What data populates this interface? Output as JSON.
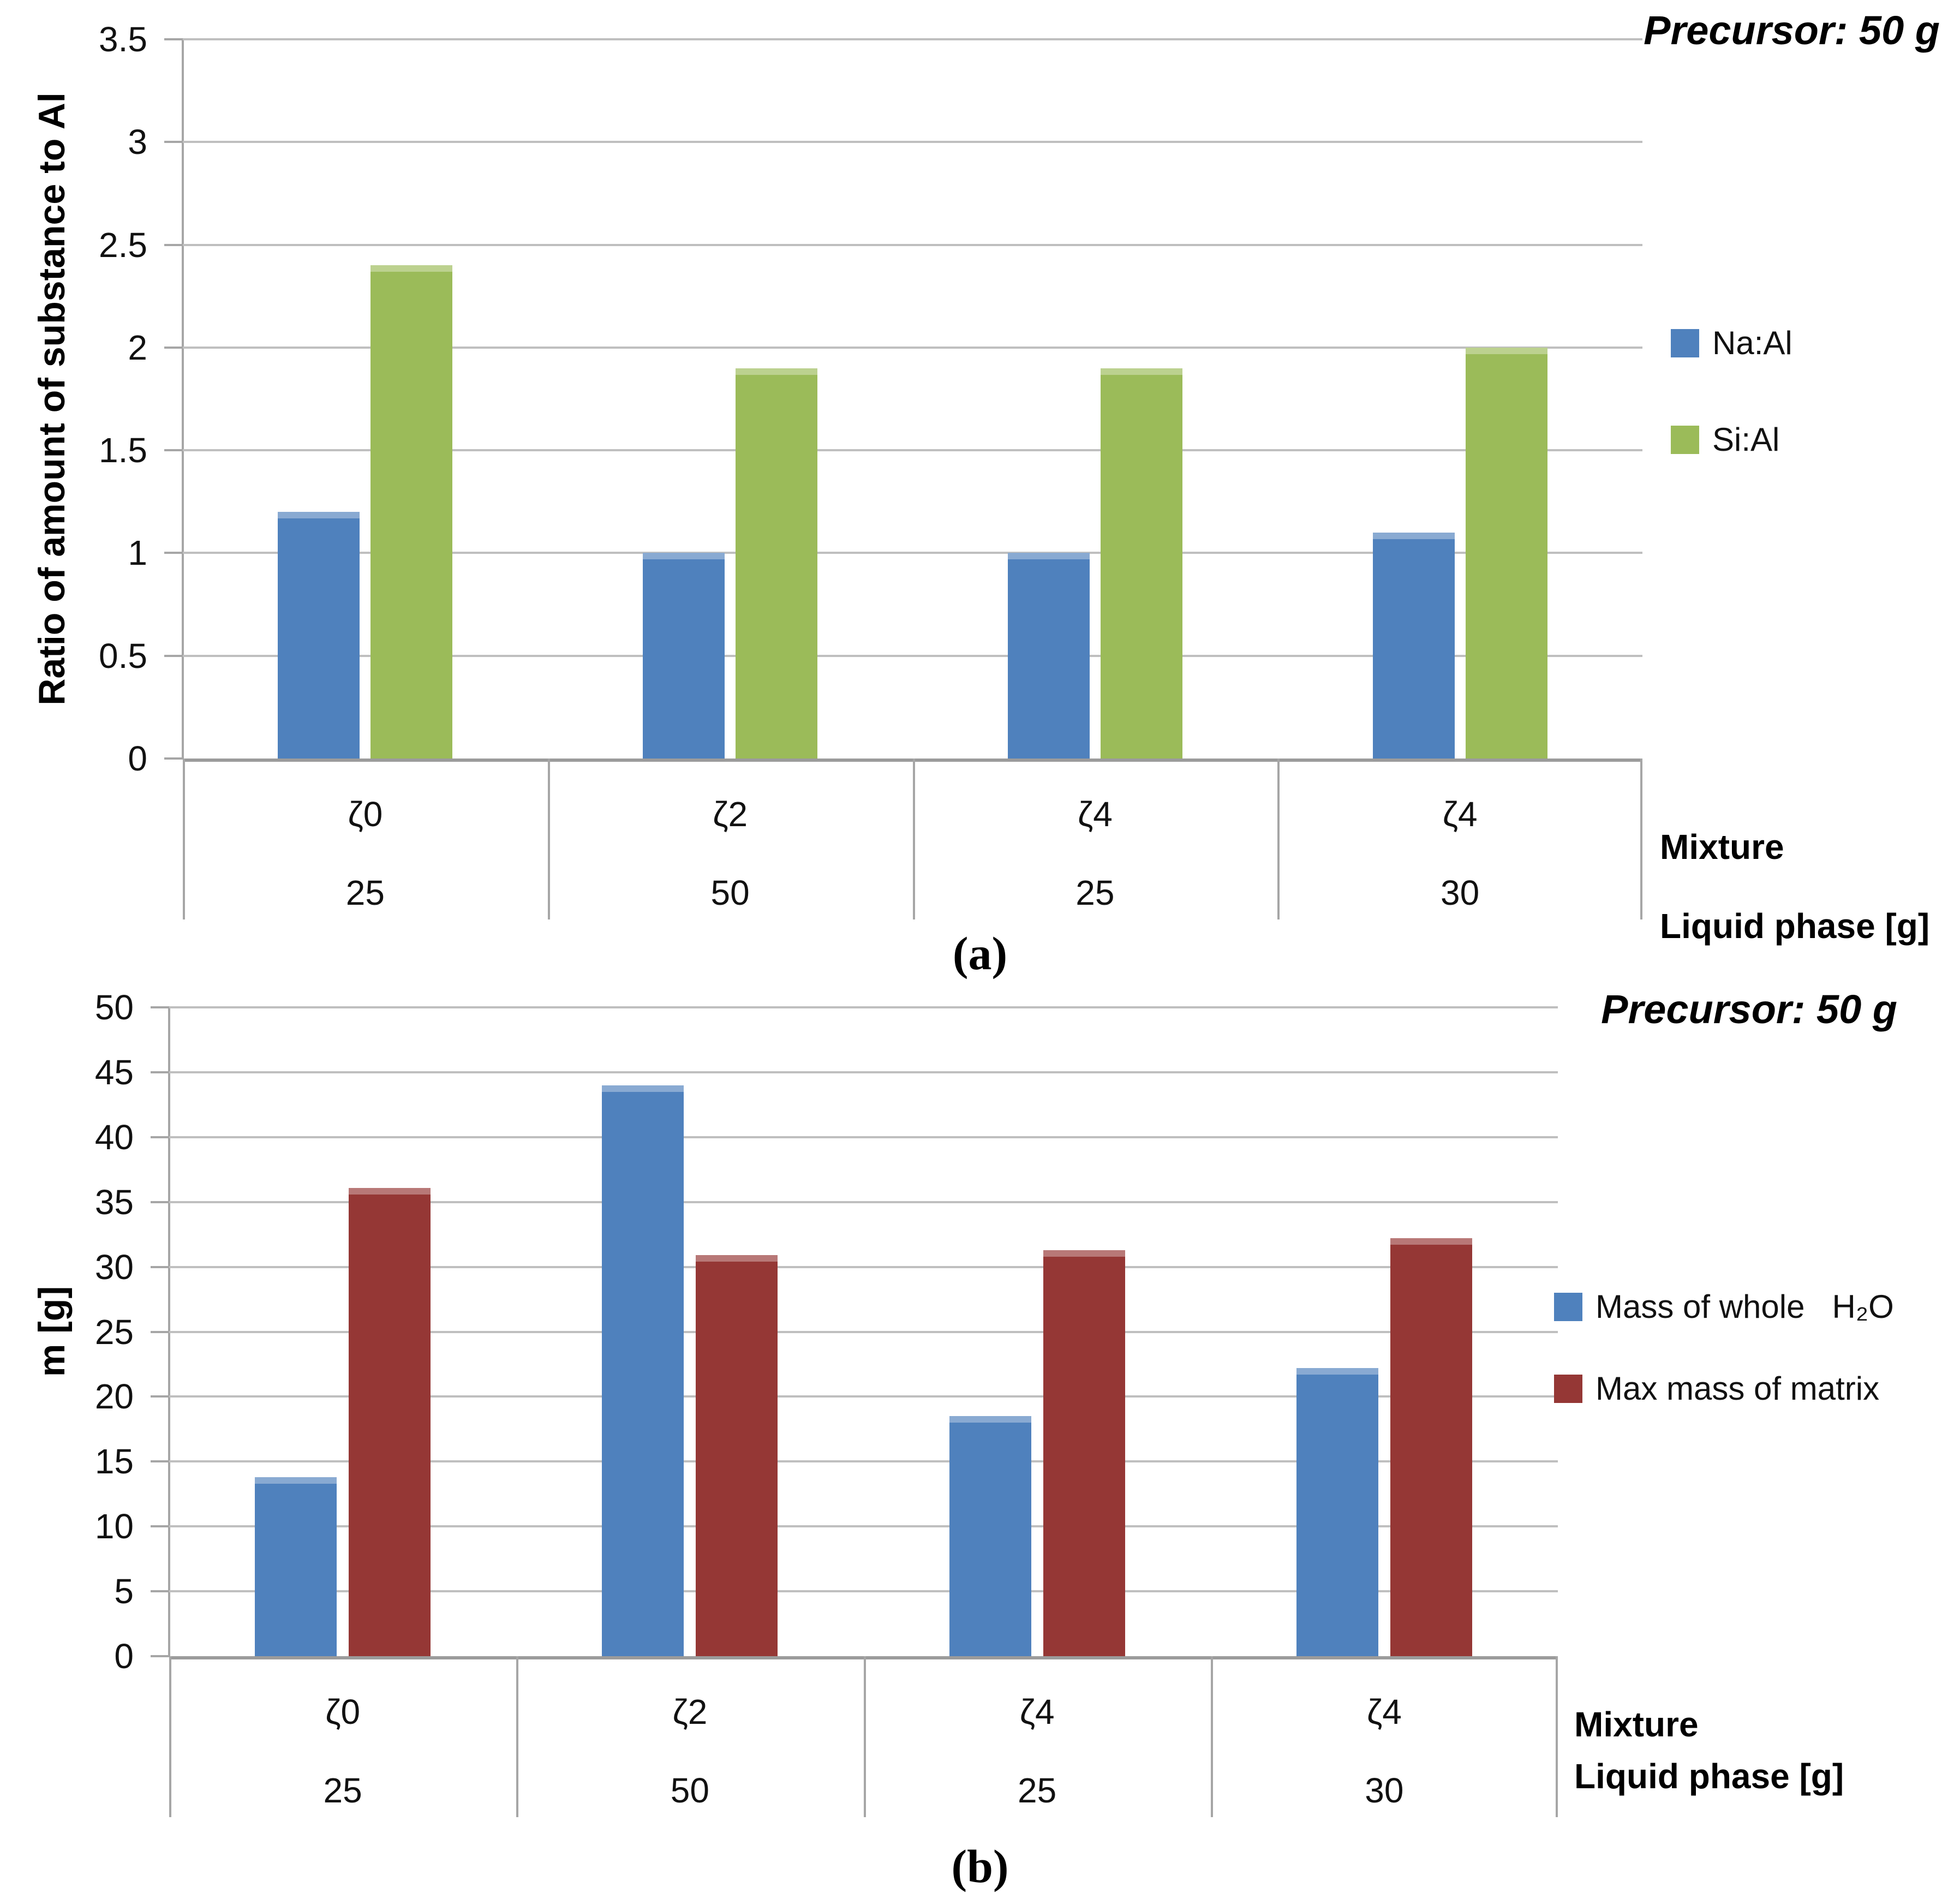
{
  "figure": {
    "captions": [
      "(a)",
      "(b)"
    ],
    "background": "#FFFFFF",
    "colors": {
      "gridline": "#BFBFBF",
      "axis": "#A6A6A6",
      "axis_baseline": "#9B9B9B"
    }
  },
  "chart_data": [
    {
      "id": "a",
      "type": "bar",
      "title": "Precursor: 50 g",
      "ylabel": "Ratio of amount of substance to Al",
      "ylim": [
        0,
        3.5
      ],
      "ytick_step": 0.5,
      "grid": true,
      "legend_position": "right",
      "series": [
        {
          "name": "Na:Al",
          "color": "#4F81BD",
          "values": [
            1.2,
            1.0,
            1.0,
            1.1
          ]
        },
        {
          "name": "Si:Al",
          "color": "#9BBB59",
          "values": [
            2.4,
            1.9,
            1.9,
            2.0
          ]
        }
      ],
      "category_rows": [
        {
          "label": "Mixture",
          "values": [
            "ζ0",
            "ζ2",
            "ζ4",
            "ζ4"
          ]
        },
        {
          "label": "Liquid phase [g]",
          "values": [
            "25",
            "50",
            "25",
            "30"
          ]
        }
      ]
    },
    {
      "id": "b",
      "type": "bar",
      "title": "Precursor: 50 g",
      "ylabel": "m [g]",
      "ylim": [
        0,
        50
      ],
      "ytick_step": 5,
      "grid": true,
      "legend_position": "right",
      "series": [
        {
          "name": "Mass of whole   H₂O",
          "color": "#4F81BD",
          "values": [
            13.8,
            44,
            18.5,
            22.2
          ]
        },
        {
          "name": "Max mass of matrix",
          "color": "#953735",
          "values": [
            36.1,
            30.9,
            31.3,
            32.2
          ]
        }
      ],
      "category_rows": [
        {
          "label": "Mixture",
          "values": [
            "ζ0",
            "ζ2",
            "ζ4",
            "ζ4"
          ]
        },
        {
          "label": "Liquid phase [g]",
          "values": [
            "25",
            "50",
            "25",
            "30"
          ]
        }
      ]
    }
  ]
}
